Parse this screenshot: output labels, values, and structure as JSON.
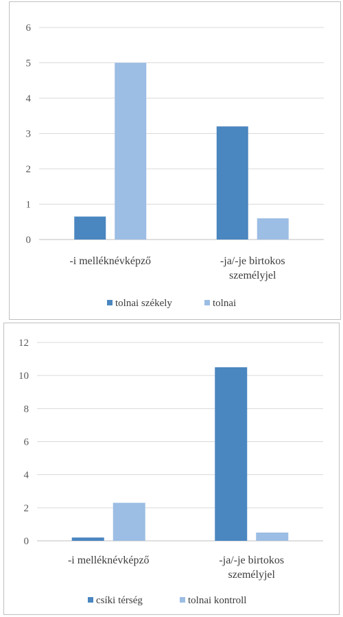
{
  "chart_data": [
    {
      "type": "bar",
      "categories": [
        [
          "-i melléknévképző"
        ],
        [
          "-ja/-je birtokos",
          "személyjel"
        ]
      ],
      "series": [
        {
          "name": "tolnai székely",
          "values": [
            0.65,
            3.2
          ],
          "color": "#4a86c0"
        },
        {
          "name": "tolnai",
          "values": [
            5.0,
            0.6
          ],
          "color": "#9cbde4"
        }
      ],
      "ylim": [
        0,
        6
      ],
      "yticks": [
        0,
        1,
        2,
        3,
        4,
        5,
        6
      ],
      "grid": true,
      "legend": "bottom"
    },
    {
      "type": "bar",
      "categories": [
        [
          "-i melléknévképző"
        ],
        [
          "-ja/-je birtokos",
          "személyjel"
        ]
      ],
      "series": [
        {
          "name": "csíki térség",
          "values": [
            0.2,
            10.5
          ],
          "color": "#4a86c0"
        },
        {
          "name": "tolnai kontroll",
          "values": [
            2.3,
            0.5
          ],
          "color": "#9cbde4"
        }
      ],
      "ylim": [
        0,
        12
      ],
      "yticks": [
        0,
        2,
        4,
        6,
        8,
        10,
        12
      ],
      "grid": true,
      "legend": "bottom"
    }
  ]
}
